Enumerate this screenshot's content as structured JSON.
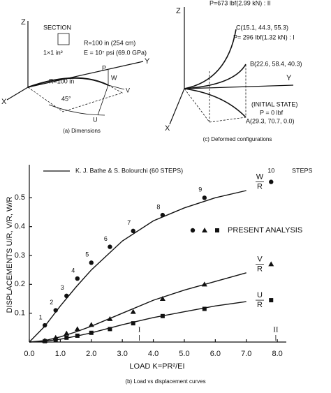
{
  "diagrams": {
    "dimensions": {
      "section": "SECTION",
      "section_size": "1×1 in²",
      "radius": "R=100 in (254 cm)",
      "modulus": "E = 10⁷ psi (69.0 GPa)",
      "arc_radius": "R=100 in",
      "angle": "45°",
      "z": "Z",
      "y": "Y",
      "x": "X",
      "p": "P",
      "w": "W",
      "v": "V",
      "u": "U",
      "caption": "(a) Dimensions"
    },
    "deformed": {
      "load_2": "P=673 lbf(2.99 kN) : II",
      "point_c": "C(15.1, 44.3, 55.3)",
      "load_1": "P= 296 lbf(1.32 kN) : I",
      "point_b": "B(22.6, 58.4, 40.3)",
      "initial": "(INITIAL STATE)",
      "load_0": "P = 0 lbf",
      "point_a": "A(29.3, 70.7, 0.0)",
      "z": "Z",
      "y": "Y",
      "x": "X",
      "caption": "(c) Deformed configurations"
    }
  },
  "chart_data": {
    "type": "line",
    "caption": "(b) Load vs displacement curves",
    "x_label": "LOAD K=PR²/EI",
    "y_label": "DISPLACEMENTS U/R, V/R, W/R",
    "reference_label": "K. J. Bathe & S. Bolourchi (60 STEPS)",
    "present_label": "PRESENT ANALYSIS",
    "steps_label": "STEPS",
    "xlim": [
      0,
      8.2
    ],
    "ylim": [
      0,
      0.6
    ],
    "xticks": [
      {
        "value": 0,
        "label": "0.0"
      },
      {
        "value": 1,
        "label": "1.0"
      },
      {
        "value": 2,
        "label": "2.0"
      },
      {
        "value": 3,
        "label": "3.0"
      },
      {
        "value": 4,
        "label": "4.0"
      },
      {
        "value": 5,
        "label": "5.0"
      },
      {
        "value": 6,
        "label": "6.0"
      },
      {
        "value": 7,
        "label": "7.0"
      },
      {
        "value": 8,
        "label": "8.0"
      }
    ],
    "yticks": [
      0.1,
      0.2,
      0.3,
      0.4,
      0.5
    ],
    "curve_x": [
      0,
      0.5,
      1,
      1.5,
      2,
      3,
      4,
      5,
      6,
      7
    ],
    "curves": [
      {
        "color": "#111111",
        "values": [
          0,
          0.055,
          0.125,
          0.19,
          0.25,
          0.35,
          0.42,
          0.465,
          0.5,
          0.525
        ]
      },
      {
        "color": "#111111",
        "values": [
          0,
          0.005,
          0.018,
          0.035,
          0.055,
          0.1,
          0.145,
          0.18,
          0.21,
          0.24
        ]
      },
      {
        "color": "#111111",
        "values": [
          0,
          0.003,
          0.01,
          0.02,
          0.032,
          0.06,
          0.085,
          0.105,
          0.125,
          0.14
        ]
      }
    ],
    "steps": [
      1,
      2,
      3,
      4,
      5,
      6,
      7,
      8,
      9,
      10
    ],
    "x": [
      0.5,
      0.85,
      1.2,
      1.55,
      2.0,
      2.6,
      3.35,
      4.3,
      5.65,
      7.8
    ],
    "series": [
      {
        "label_top": "W",
        "label_bottom": "R",
        "marker": "circle",
        "color": "#111111",
        "values": [
          0.058,
          0.11,
          0.16,
          0.22,
          0.275,
          0.33,
          0.385,
          0.44,
          0.5,
          0.555
        ]
      },
      {
        "label_top": "V",
        "label_bottom": "R",
        "marker": "triangle",
        "color": "#111111",
        "values": [
          0.005,
          0.015,
          0.03,
          0.045,
          0.06,
          0.08,
          0.105,
          0.15,
          0.2,
          0.27
        ]
      },
      {
        "label_top": "U",
        "label_bottom": "R",
        "marker": "square",
        "color": "#111111",
        "values": [
          0.003,
          0.008,
          0.015,
          0.022,
          0.032,
          0.045,
          0.065,
          0.09,
          0.115,
          0.145
        ]
      }
    ],
    "annotations": [
      {
        "text": "I",
        "x": 3.55
      },
      {
        "text": "II",
        "x": 7.95
      }
    ]
  }
}
